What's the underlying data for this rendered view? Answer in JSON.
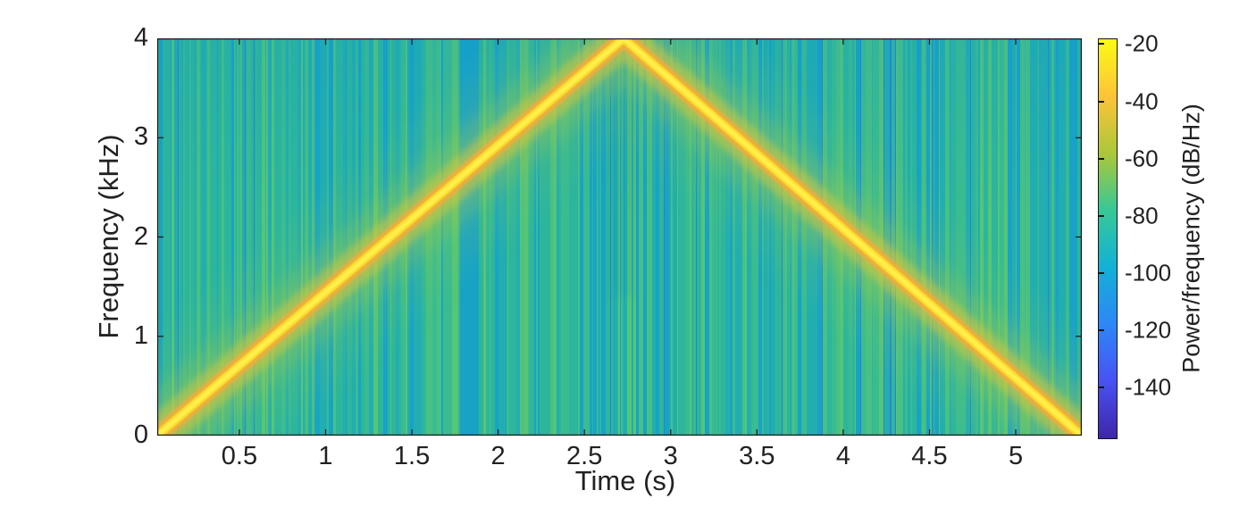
{
  "chart_data": {
    "type": "heatmap",
    "subtype": "spectrogram",
    "title": "",
    "xlabel": "Time (s)",
    "ylabel": "Frequency (kHz)",
    "x_range": [
      0.024,
      5.383
    ],
    "y_range": [
      0,
      4
    ],
    "x_ticks": [
      0.5,
      1,
      1.5,
      2,
      2.5,
      3,
      3.5,
      4,
      4.5,
      5
    ],
    "x_tick_labels": [
      "0.5",
      "1",
      "1.5",
      "2",
      "2.5",
      "3",
      "3.5",
      "4",
      "4.5",
      "5"
    ],
    "y_ticks": [
      0,
      1,
      2,
      3,
      4
    ],
    "y_tick_labels": [
      "0",
      "1",
      "2",
      "3",
      "4"
    ],
    "grid": false,
    "legend": null,
    "colorbar": {
      "label": "Power/frequency (dB/Hz)",
      "ticks": [
        -20,
        -40,
        -60,
        -80,
        -100,
        -120,
        -140
      ],
      "tick_labels": [
        "-20",
        "-40",
        "-60",
        "-80",
        "-100",
        "-120",
        "-140"
      ],
      "range_db": [
        -158,
        -18
      ],
      "colormap": "parula",
      "stops_top_to_bottom": [
        "#f9fb15",
        "#fec338",
        "#abc739",
        "#37c897",
        "#12b1d6",
        "#2d87f7",
        "#4852f4",
        "#3e26a8"
      ]
    },
    "signal": {
      "description": "Triangular linear chirp: frequency sweeps from 0 kHz up to 4 kHz at t≈2.73 s, then back down to 0 kHz at t≈5.4 s",
      "ridge_points_t_f": [
        [
          0.024,
          0
        ],
        [
          2.727,
          4
        ],
        [
          5.383,
          0
        ]
      ],
      "ridge_power_db": -20,
      "background_power_db_range": [
        -110,
        -70
      ]
    },
    "style": {
      "ridge_core_color": "#fbe32a",
      "ridge_edge_color": "#f2ac3d",
      "glow_colors": [
        "#7fc45c",
        "#a6cb48",
        "#d9c93d"
      ],
      "background_base": "#2db69c",
      "background_stripe_colors": {
        "blue": "#2e7fd4",
        "cyanblue": "#18a3c6",
        "tealcyan": "#22aeb0",
        "teal": "#2db69c",
        "greenteal": "#3abc90",
        "green": "#47c184",
        "brightgreen": "#55c578"
      },
      "axis_color": "#151515",
      "label_color": "#212121"
    }
  }
}
